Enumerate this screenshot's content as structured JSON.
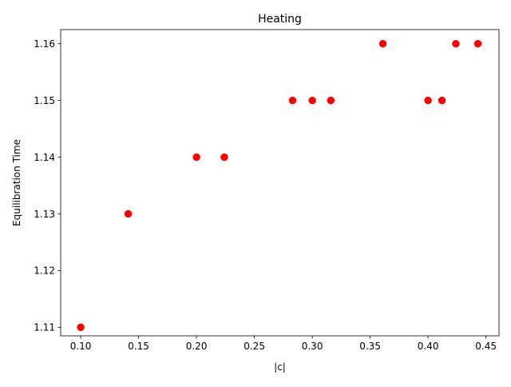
{
  "chart_data": {
    "type": "scatter",
    "title": "Heating",
    "xlabel": "|c|",
    "ylabel": "Equilibration Time",
    "xlim": [
      0.0827,
      0.4613
    ],
    "ylim": [
      1.1085,
      1.1625
    ],
    "xticks": [
      0.1,
      0.15,
      0.2,
      0.25,
      0.3,
      0.35,
      0.4,
      0.45
    ],
    "xtick_labels": [
      "0.10",
      "0.15",
      "0.20",
      "0.25",
      "0.30",
      "0.35",
      "0.40",
      "0.45"
    ],
    "yticks": [
      1.11,
      1.12,
      1.13,
      1.14,
      1.15,
      1.16
    ],
    "ytick_labels": [
      "1.11",
      "1.12",
      "1.13",
      "1.14",
      "1.15",
      "1.16"
    ],
    "grid": false,
    "legend": "none",
    "series": [
      {
        "color": "#ff0000",
        "marker": "circle",
        "points": [
          {
            "x": 0.1,
            "y": 1.11
          },
          {
            "x": 0.141,
            "y": 1.13
          },
          {
            "x": 0.2,
            "y": 1.14
          },
          {
            "x": 0.224,
            "y": 1.14
          },
          {
            "x": 0.283,
            "y": 1.15
          },
          {
            "x": 0.3,
            "y": 1.15
          },
          {
            "x": 0.316,
            "y": 1.15
          },
          {
            "x": 0.361,
            "y": 1.16
          },
          {
            "x": 0.4,
            "y": 1.15
          },
          {
            "x": 0.412,
            "y": 1.15
          },
          {
            "x": 0.424,
            "y": 1.16
          },
          {
            "x": 0.443,
            "y": 1.16
          }
        ]
      }
    ]
  }
}
